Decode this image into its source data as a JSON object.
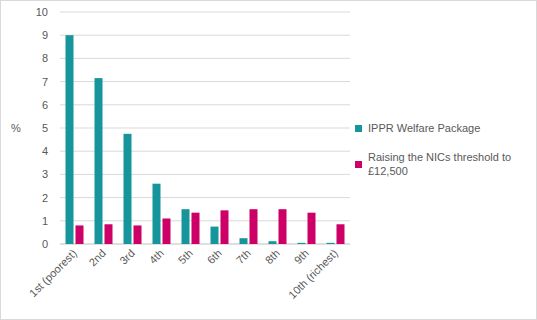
{
  "chart_data": {
    "type": "bar",
    "ylabel": "%",
    "categories": [
      "1st (poorest)",
      "2nd",
      "3rd",
      "4th",
      "5th",
      "6th",
      "7th",
      "8th",
      "9th",
      "10th (richest)"
    ],
    "series": [
      {
        "name": "IPPR Welfare Package",
        "color": "#17959c",
        "values": [
          9.0,
          7.15,
          4.75,
          2.6,
          1.5,
          0.75,
          0.25,
          0.12,
          0.05,
          0.05
        ]
      },
      {
        "name": "Raising the NICs threshold to £12,500",
        "color": "#cc0066",
        "values": [
          0.8,
          0.85,
          0.8,
          1.1,
          1.35,
          1.45,
          1.5,
          1.5,
          1.35,
          0.85
        ]
      }
    ],
    "ylim": [
      0,
      10
    ],
    "yticks": [
      0,
      1,
      2,
      3,
      4,
      5,
      6,
      7,
      8,
      9,
      10
    ],
    "grid": true,
    "legend": "right"
  }
}
